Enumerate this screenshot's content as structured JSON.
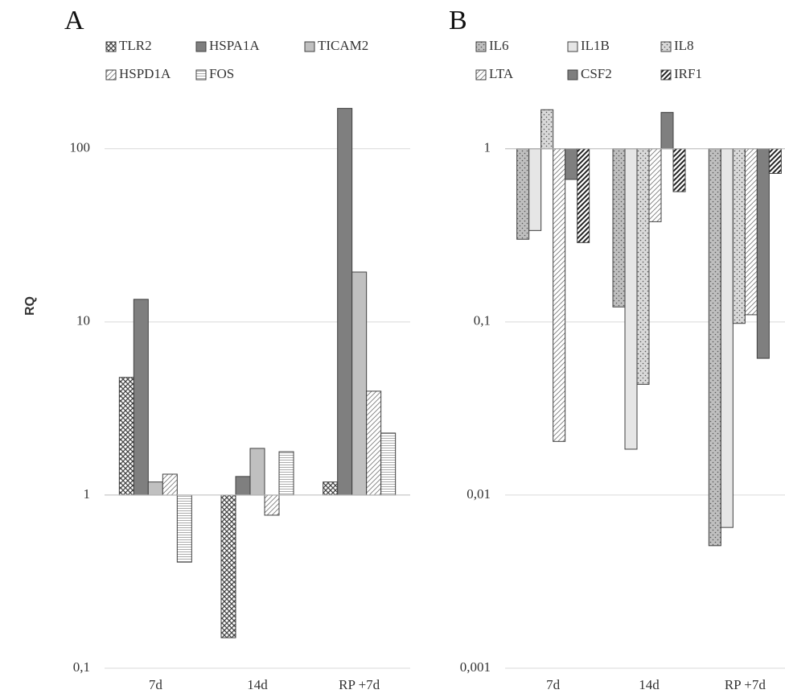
{
  "chart_data": [
    {
      "type": "bar",
      "title": "A",
      "y_label": "RQ",
      "log_scale": true,
      "grid": true,
      "categories": [
        "7d",
        "14d",
        "RP +7d"
      ],
      "ylim": [
        0.1,
        200
      ],
      "yticks": [
        {
          "value": 0.1,
          "label": "0,1"
        },
        1,
        10,
        100
      ],
      "series": [
        {
          "name": "TLR2",
          "color": "#ffffff",
          "pattern": "crosshatch",
          "values": [
            4.78,
            0.15,
            1.19
          ]
        },
        {
          "name": "HSPA1A",
          "color": "#7f7f7f",
          "pattern": "solid",
          "values": [
            13.5,
            1.28,
            171
          ]
        },
        {
          "name": "TICAM2",
          "color": "#c0c0c0",
          "pattern": "solid",
          "values": [
            1.19,
            1.86,
            19.4
          ]
        },
        {
          "name": "HSPD1A",
          "color": "#ffffff",
          "pattern": "diagonal",
          "values": [
            1.32,
            0.765,
            3.98
          ]
        },
        {
          "name": "FOS",
          "color": "#ffffff",
          "pattern": "horizontal",
          "values": [
            0.41,
            1.78,
            2.28
          ]
        }
      ]
    },
    {
      "type": "bar",
      "title": "B",
      "log_scale": true,
      "grid": true,
      "categories": [
        "7d",
        "14d",
        "RP +7d"
      ],
      "ylim": [
        0.001,
        2
      ],
      "yticks": [
        {
          "value": 0.001,
          "label": "0,001"
        },
        {
          "value": 0.01,
          "label": "0,01"
        },
        {
          "value": 0.1,
          "label": "0,1"
        },
        1
      ],
      "series": [
        {
          "name": "IL6",
          "color": "#bfbfbf",
          "pattern": "dots",
          "values": [
            0.3,
            0.122,
            0.0051
          ]
        },
        {
          "name": "IL1B",
          "color": "#e6e6e6",
          "pattern": "solid",
          "values": [
            0.337,
            0.0184,
            0.0065
          ]
        },
        {
          "name": "IL8",
          "color": "#d9d9d9",
          "pattern": "dots",
          "values": [
            1.68,
            0.0436,
            0.098
          ]
        },
        {
          "name": "LTA",
          "color": "#ffffff",
          "pattern": "diagonal",
          "values": [
            0.0204,
            0.379,
            0.11
          ]
        },
        {
          "name": "CSF2",
          "color": "#7f7f7f",
          "pattern": "solid",
          "values": [
            0.665,
            1.62,
            0.0616
          ]
        },
        {
          "name": "IRF1",
          "color": "#ffffff",
          "pattern": "bold-diagonal",
          "values": [
            0.287,
            0.565,
            0.72
          ]
        }
      ]
    }
  ]
}
